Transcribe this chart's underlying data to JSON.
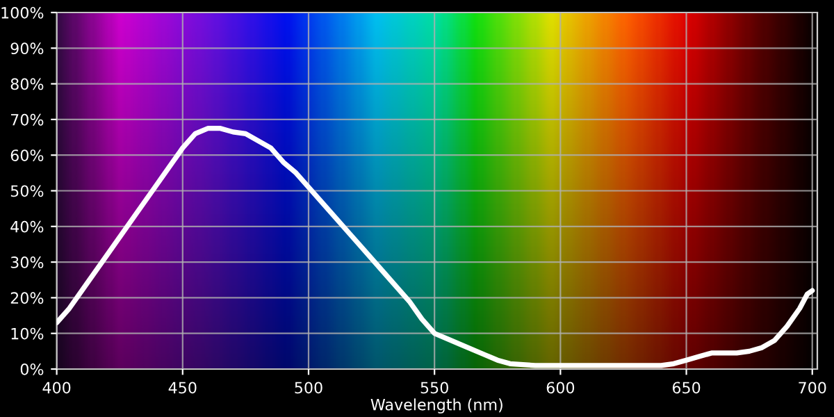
{
  "chart_data": {
    "type": "line",
    "xlabel": "Wavelength (nm)",
    "series": [
      {
        "color": "#ffffff",
        "x": [
          400,
          405,
          410,
          420,
          430,
          440,
          450,
          455,
          460,
          465,
          470,
          475,
          480,
          485,
          490,
          495,
          500,
          510,
          520,
          530,
          540,
          545,
          550,
          555,
          560,
          570,
          575,
          580,
          590,
          600,
          620,
          640,
          645,
          650,
          655,
          660,
          670,
          675,
          680,
          685,
          690,
          695,
          698,
          700
        ],
        "values": [
          13,
          17,
          22,
          32,
          42,
          52,
          62,
          66,
          67.5,
          67.5,
          66.5,
          66,
          64,
          62,
          58,
          55,
          51,
          43,
          35,
          27,
          19,
          14,
          10,
          8.5,
          7,
          4,
          2.5,
          1.5,
          1,
          1,
          1,
          1,
          1.5,
          2.5,
          3.5,
          4.5,
          4.5,
          5,
          6,
          8,
          12,
          17,
          21,
          22
        ]
      }
    ],
    "xlim": [
      400,
      702
    ],
    "xticks": [
      400,
      450,
      500,
      550,
      600,
      650,
      700
    ],
    "ylim": [
      0,
      100
    ],
    "yticks": [
      {
        "value": 0,
        "label": "0%"
      },
      {
        "value": 10,
        "label": "10%"
      },
      {
        "value": 20,
        "label": "20%"
      },
      {
        "value": 30,
        "label": "30%"
      },
      {
        "value": 40,
        "label": "40%"
      },
      {
        "value": 50,
        "label": "50%"
      },
      {
        "value": 60,
        "label": "60%"
      },
      {
        "value": 70,
        "label": "70%"
      },
      {
        "value": 80,
        "label": "80%"
      },
      {
        "value": 90,
        "label": "90%"
      },
      {
        "value": 100,
        "label": "100%"
      }
    ],
    "grid": true,
    "line_style": "solid",
    "legend": false
  }
}
